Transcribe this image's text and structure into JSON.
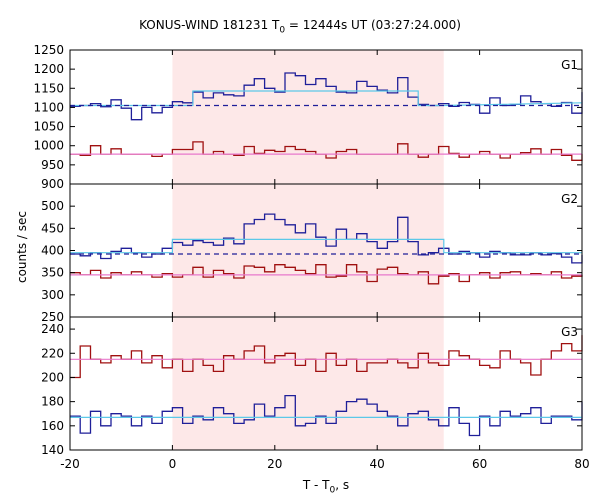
{
  "chart_data": {
    "type": "line",
    "title_main": "KONUS-WIND 181231 T",
    "title_sub": "0",
    "title_rest": " = 12444s UT (03:27:24.000)",
    "xlabel_main": "T - T",
    "xlabel_sub": "0",
    "xlabel_rest": ", s",
    "ylabel": "counts / sec",
    "xlim": [
      -20,
      80
    ],
    "xticks": [
      "-20",
      "0",
      "20",
      "40",
      "60",
      "80"
    ],
    "highlight_interval": [
      0,
      53
    ],
    "colors": {
      "signal": "#1f1f99",
      "other": "#a01010",
      "fit": "#5cc8e8",
      "background": "#e878cc",
      "highlight": "#fde8e8",
      "bg_dash": "#1f1f99"
    },
    "panels": [
      {
        "label": "G1",
        "ylim": [
          900,
          1250
        ],
        "yticks": [
          "900",
          "950",
          "1000",
          "1050",
          "1100",
          "1150",
          "1200",
          "1250"
        ],
        "series": [
          {
            "role": "signal",
            "x": [
              -20,
              -18,
              -16,
              -14,
              -12,
              -10,
              -8,
              -6,
              -4,
              -2,
              0,
              2,
              4,
              6,
              8,
              10,
              12,
              14,
              16,
              18,
              20,
              22,
              24,
              26,
              28,
              30,
              32,
              34,
              36,
              38,
              40,
              42,
              44,
              46,
              48,
              50,
              52,
              54,
              56,
              58,
              60,
              62,
              64,
              66,
              68,
              70,
              72,
              74,
              76,
              78,
              80
            ],
            "y": [
              1103,
              1105,
              1110,
              1102,
              1120,
              1098,
              1068,
              1100,
              1086,
              1100,
              1115,
              1112,
              1140,
              1125,
              1138,
              1133,
              1130,
              1158,
              1175,
              1150,
              1140,
              1190,
              1183,
              1160,
              1175,
              1155,
              1140,
              1138,
              1168,
              1155,
              1145,
              1138,
              1178,
              1127,
              1108,
              1105,
              1110,
              1103,
              1113,
              1108,
              1085,
              1125,
              1105,
              1108,
              1130,
              1115,
              1110,
              1103,
              1113,
              1085,
              1140
            ]
          },
          {
            "role": "other",
            "x": [
              -20,
              -18,
              -16,
              -14,
              -12,
              -10,
              -8,
              -6,
              -4,
              -2,
              0,
              2,
              4,
              6,
              8,
              10,
              12,
              14,
              16,
              18,
              20,
              22,
              24,
              26,
              28,
              30,
              32,
              34,
              36,
              38,
              40,
              42,
              44,
              46,
              48,
              50,
              52,
              54,
              56,
              58,
              60,
              62,
              64,
              66,
              68,
              70,
              72,
              74,
              76,
              78,
              80
            ],
            "y": [
              978,
              975,
              1000,
              978,
              992,
              978,
              978,
              978,
              972,
              978,
              990,
              990,
              1010,
              978,
              985,
              978,
              975,
              998,
              980,
              988,
              985,
              998,
              990,
              985,
              978,
              968,
              985,
              990,
              978,
              978,
              978,
              978,
              1005,
              978,
              970,
              978,
              998,
              980,
              970,
              978,
              985,
              978,
              968,
              978,
              982,
              992,
              978,
              990,
              975,
              962,
              978
            ]
          },
          {
            "role": "fit",
            "x": [
              -20,
              4,
              4,
              48,
              48,
              53,
              53,
              80
            ],
            "y": [
              1105,
              1105,
              1143,
              1143,
              1105,
              1105,
              1105,
              1112
            ]
          },
          {
            "role": "bg_dash",
            "x": [
              -20,
              80
            ],
            "y": [
              1105,
              1105
            ]
          },
          {
            "role": "background",
            "x": [
              -20,
              80
            ],
            "y": [
              978,
              978
            ]
          }
        ]
      },
      {
        "label": "G2",
        "ylim": [
          250,
          550
        ],
        "yticks": [
          "250",
          "300",
          "350",
          "400",
          "450",
          "500"
        ],
        "series": [
          {
            "role": "signal",
            "x": [
              -20,
              -18,
              -16,
              -14,
              -12,
              -10,
              -8,
              -6,
              -4,
              -2,
              0,
              2,
              4,
              6,
              8,
              10,
              12,
              14,
              16,
              18,
              20,
              22,
              24,
              26,
              28,
              30,
              32,
              34,
              36,
              38,
              40,
              42,
              44,
              46,
              48,
              50,
              52,
              54,
              56,
              58,
              60,
              62,
              64,
              66,
              68,
              70,
              72,
              74,
              76,
              78,
              80
            ],
            "y": [
              392,
              388,
              395,
              382,
              398,
              405,
              395,
              385,
              392,
              405,
              418,
              412,
              422,
              418,
              412,
              428,
              415,
              460,
              470,
              482,
              470,
              458,
              440,
              460,
              430,
              410,
              448,
              425,
              438,
              420,
              405,
              420,
              475,
              420,
              390,
              395,
              405,
              392,
              398,
              395,
              385,
              398,
              395,
              390,
              390,
              395,
              390,
              393,
              385,
              372,
              390
            ]
          },
          {
            "role": "other",
            "x": [
              -20,
              -18,
              -16,
              -14,
              -12,
              -10,
              -8,
              -6,
              -4,
              -2,
              0,
              2,
              4,
              6,
              8,
              10,
              12,
              14,
              16,
              18,
              20,
              22,
              24,
              26,
              28,
              30,
              32,
              34,
              36,
              38,
              40,
              42,
              44,
              46,
              48,
              50,
              52,
              54,
              56,
              58,
              60,
              62,
              64,
              66,
              68,
              70,
              72,
              74,
              76,
              78,
              80
            ],
            "y": [
              350,
              345,
              355,
              338,
              350,
              345,
              352,
              345,
              340,
              348,
              340,
              345,
              362,
              340,
              355,
              348,
              338,
              365,
              362,
              352,
              368,
              362,
              355,
              348,
              368,
              340,
              342,
              368,
              352,
              330,
              358,
              362,
              348,
              345,
              352,
              325,
              342,
              348,
              330,
              345,
              350,
              338,
              350,
              352,
              345,
              348,
              345,
              352,
              338,
              342,
              345
            ]
          },
          {
            "role": "fit",
            "x": [
              -20,
              0,
              0,
              53,
              53,
              80
            ],
            "y": [
              395,
              395,
              425,
              425,
              395,
              395
            ]
          },
          {
            "role": "bg_dash",
            "x": [
              -20,
              80
            ],
            "y": [
              392,
              392
            ]
          },
          {
            "role": "background",
            "x": [
              -20,
              80
            ],
            "y": [
              345,
              345
            ]
          }
        ]
      },
      {
        "label": "G3",
        "ylim": [
          140,
          250
        ],
        "yticks": [
          "140",
          "160",
          "180",
          "200",
          "220",
          "240"
        ],
        "series": [
          {
            "role": "signal",
            "x": [
              -20,
              -18,
              -16,
              -14,
              -12,
              -10,
              -8,
              -6,
              -4,
              -2,
              0,
              2,
              4,
              6,
              8,
              10,
              12,
              14,
              16,
              18,
              20,
              22,
              24,
              26,
              28,
              30,
              32,
              34,
              36,
              38,
              40,
              42,
              44,
              46,
              48,
              50,
              52,
              54,
              56,
              58,
              60,
              62,
              64,
              66,
              68,
              70,
              72,
              74,
              76,
              78,
              80
            ],
            "y": [
              168,
              154,
              172,
              160,
              170,
              168,
              160,
              168,
              162,
              172,
              175,
              162,
              168,
              165,
              175,
              170,
              162,
              165,
              178,
              168,
              175,
              185,
              160,
              162,
              168,
              162,
              172,
              180,
              182,
              178,
              172,
              168,
              160,
              170,
              172,
              165,
              160,
              175,
              162,
              152,
              168,
              160,
              172,
              168,
              170,
              175,
              162,
              168,
              168,
              165,
              180
            ]
          },
          {
            "role": "other",
            "x": [
              -20,
              -18,
              -16,
              -14,
              -12,
              -10,
              -8,
              -6,
              -4,
              -2,
              0,
              2,
              4,
              6,
              8,
              10,
              12,
              14,
              16,
              18,
              20,
              22,
              24,
              26,
              28,
              30,
              32,
              34,
              36,
              38,
              40,
              42,
              44,
              46,
              48,
              50,
              52,
              54,
              56,
              58,
              60,
              62,
              64,
              66,
              68,
              70,
              72,
              74,
              76,
              78,
              80
            ],
            "y": [
              200,
              226,
              215,
              212,
              218,
              215,
              222,
              212,
              218,
              208,
              215,
              205,
              215,
              210,
              205,
              218,
              215,
              222,
              226,
              212,
              218,
              220,
              210,
              215,
              205,
              220,
              210,
              215,
              205,
              212,
              212,
              215,
              212,
              208,
              220,
              212,
              210,
              222,
              218,
              215,
              210,
              208,
              222,
              215,
              212,
              202,
              215,
              222,
              228,
              222,
              235
            ]
          },
          {
            "role": "fit",
            "x": [
              -20,
              80
            ],
            "y": [
              167,
              167
            ]
          },
          {
            "role": "background",
            "x": [
              -20,
              80
            ],
            "y": [
              215,
              215
            ]
          }
        ]
      }
    ]
  }
}
